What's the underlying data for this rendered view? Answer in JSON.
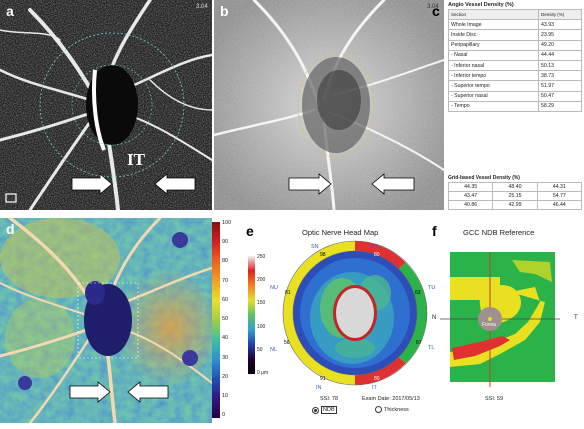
{
  "panel_labels": {
    "a": "a",
    "b": "b",
    "c": "c",
    "d": "d",
    "e": "e",
    "f": "f"
  },
  "panel_a": {
    "arrow_label": "IT",
    "corner_text": "3.04"
  },
  "panel_b": {
    "corner_text": "3.04"
  },
  "panel_c": {
    "title": "Angio Vessel Density (%)",
    "col_section": "Section",
    "col_density": "Density (%)",
    "rows": [
      {
        "section": "Whole Image",
        "density": "43.93"
      },
      {
        "section": "Inside Disc",
        "density": "23.95"
      },
      {
        "section": "Peripapillary",
        "density": "49.20"
      },
      {
        "section": "- Nasal",
        "density": "44.44"
      },
      {
        "section": "- Inferior nasal",
        "density": "50.13"
      },
      {
        "section": "- Inferior tempo",
        "density": "38.73"
      },
      {
        "section": "- Superior tempo",
        "density": "51.97"
      },
      {
        "section": "- Superior nasal",
        "density": "50.47"
      },
      {
        "section": "- Tempo",
        "density": "58.29"
      }
    ],
    "grid_title": "Grid-based Vessel Density (%)",
    "grid": [
      [
        "44.35",
        "48.40",
        "44.31"
      ],
      [
        "43.47",
        "25.15",
        "54.77"
      ],
      [
        "40.86",
        "42.99",
        "46.44"
      ]
    ]
  },
  "panel_d": {
    "scale_ticks": [
      "100",
      "90",
      "80",
      "70",
      "60",
      "50",
      "40",
      "30",
      "20",
      "10",
      "0"
    ]
  },
  "panel_e": {
    "title": "Optic Nerve Head Map",
    "scale_ticks": [
      "250",
      "200",
      "150",
      "100",
      "50",
      "0 μm"
    ],
    "sectors": {
      "SN": "SN",
      "ST": "ST",
      "NU": "NU",
      "TU": "TU",
      "NL": "NL",
      "TL": "TL",
      "IN": "IN",
      "IT": "IT"
    },
    "values": {
      "SN": "98",
      "ST": "80",
      "NU": "81",
      "TU": "63",
      "NL": "56",
      "TL": "67",
      "IN": "91",
      "IT": "80"
    },
    "ssi": "SSI: 78",
    "exam_date": "Exam Date: 2017/05/13",
    "option_ndb": "NDB",
    "option_thickness": "Thickness"
  },
  "panel_f": {
    "title": "GCC NDB Reference",
    "n": "N",
    "t": "T",
    "fovea": "Fovea",
    "ssi": "SSI: 59"
  },
  "colors": {
    "red": "#e03030",
    "yellow": "#e8e020",
    "green": "#2bb34a",
    "arrow": "#ffffff"
  }
}
